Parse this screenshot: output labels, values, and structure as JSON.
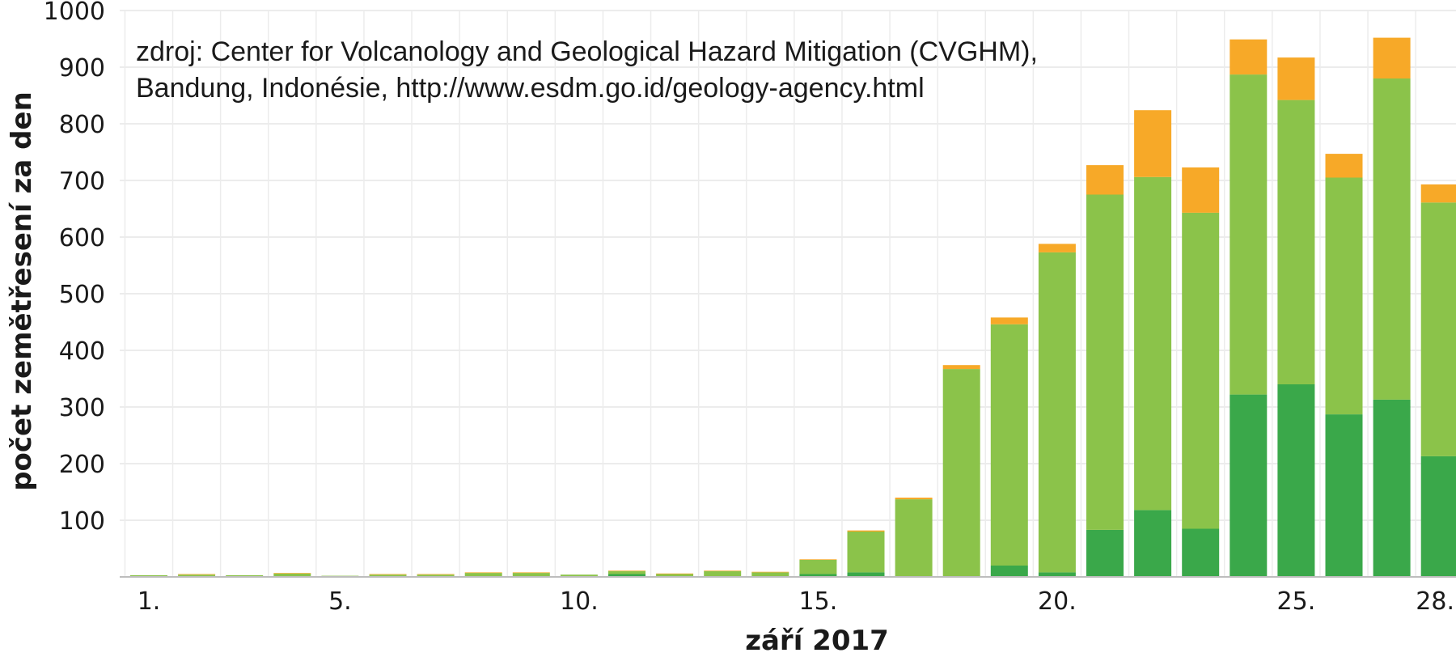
{
  "chart_data": {
    "type": "bar",
    "stacked": true,
    "xlabel": "září 2017",
    "ylabel": "počet zemětřesení za den",
    "ylim": [
      0,
      1000
    ],
    "yticks": [
      100,
      200,
      300,
      400,
      500,
      600,
      700,
      800,
      900,
      1000
    ],
    "grid": true,
    "annotation": {
      "line1": "zdroj: Center for Volcanology and Geological Hazard Mitigation (CVGHM),",
      "line2": "Bandung, Indonésie,  http://www.esdm.go.id/geology-agency.html"
    },
    "x": [
      1,
      2,
      3,
      4,
      5,
      6,
      7,
      8,
      9,
      10,
      11,
      12,
      13,
      14,
      15,
      16,
      17,
      18,
      19,
      20,
      21,
      22,
      23,
      24,
      25,
      26,
      27,
      28
    ],
    "xtick_labels": [
      {
        "day": 1,
        "label": "1."
      },
      {
        "day": 5,
        "label": "5."
      },
      {
        "day": 10,
        "label": "10."
      },
      {
        "day": 15,
        "label": "15."
      },
      {
        "day": 20,
        "label": "20."
      },
      {
        "day": 25,
        "label": "25."
      },
      {
        "day": 28,
        "label": "28."
      }
    ],
    "series": [
      {
        "color": "#3aa84a",
        "values": [
          0,
          0,
          0,
          0,
          0,
          0,
          0,
          0,
          0,
          0,
          5,
          0,
          0,
          0,
          5,
          8,
          0,
          0,
          20,
          8,
          83,
          118,
          85,
          322,
          340,
          287,
          313,
          213
        ]
      },
      {
        "color": "#8bc34a",
        "values": [
          3,
          4,
          3,
          6,
          2,
          4,
          4,
          7,
          7,
          4,
          5,
          5,
          10,
          8,
          25,
          72,
          137,
          367,
          426,
          565,
          592,
          588,
          558,
          565,
          502,
          418,
          567,
          448
        ]
      },
      {
        "color": "#f7a928",
        "values": [
          0,
          1,
          0,
          1,
          0,
          1,
          1,
          1,
          1,
          0,
          1,
          1,
          1,
          1,
          1,
          2,
          3,
          7,
          12,
          15,
          52,
          118,
          80,
          62,
          75,
          42,
          72,
          32
        ]
      }
    ]
  }
}
